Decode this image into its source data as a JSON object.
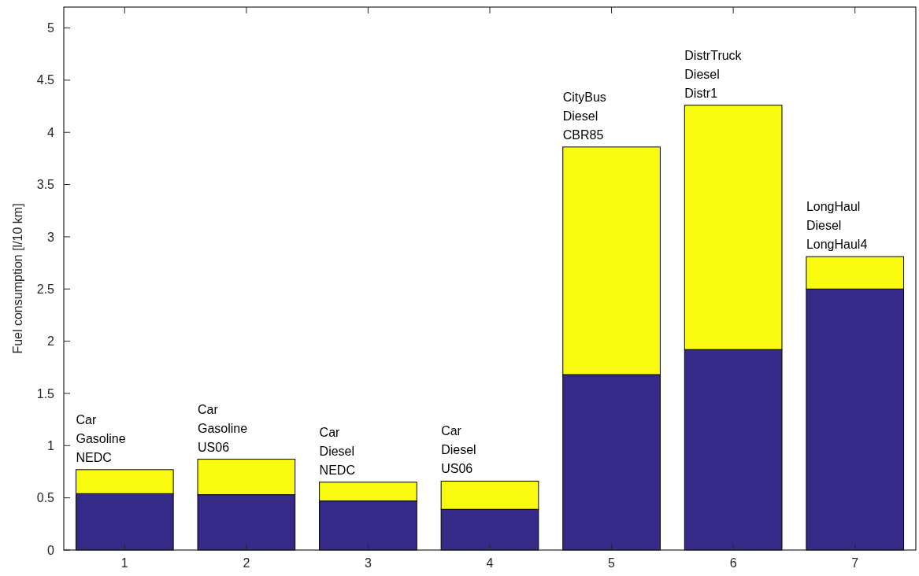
{
  "chart_data": {
    "type": "bar",
    "stacked": true,
    "ylabel": "Fuel consumption [l/10 km]",
    "categories": [
      "1",
      "2",
      "3",
      "4",
      "5",
      "6",
      "7"
    ],
    "series": [
      {
        "color": "#352a87",
        "values": [
          0.54,
          0.53,
          0.47,
          0.39,
          1.68,
          1.92,
          2.5
        ]
      },
      {
        "color": "#f9fb0e",
        "values": [
          0.23,
          0.34,
          0.18,
          0.27,
          2.18,
          2.34,
          0.31
        ]
      }
    ],
    "ylim": [
      0,
      5.2
    ],
    "yticks": [
      0,
      0.5,
      1,
      1.5,
      2,
      2.5,
      3,
      3.5,
      4,
      4.5,
      5
    ],
    "annotations": [
      {
        "text": "Car\nGasoline\nNEDC",
        "x": "1",
        "y": 0.77
      },
      {
        "text": "Car\nGasoline\nUS06",
        "x": "2",
        "y": 0.87
      },
      {
        "text": "Car\nDiesel\nNEDC",
        "x": "3",
        "y": 0.65
      },
      {
        "text": "Car\nDiesel\nUS06",
        "x": "4",
        "y": 0.66
      },
      {
        "text": "CityBus\nDiesel\nCBR85",
        "x": "5",
        "y": 3.86
      },
      {
        "text": "DistrTruck\nDiesel\nDistr1",
        "x": "6",
        "y": 4.26
      },
      {
        "text": "LongHaul\nDiesel\nLongHaul4",
        "x": "7",
        "y": 2.81
      }
    ]
  }
}
